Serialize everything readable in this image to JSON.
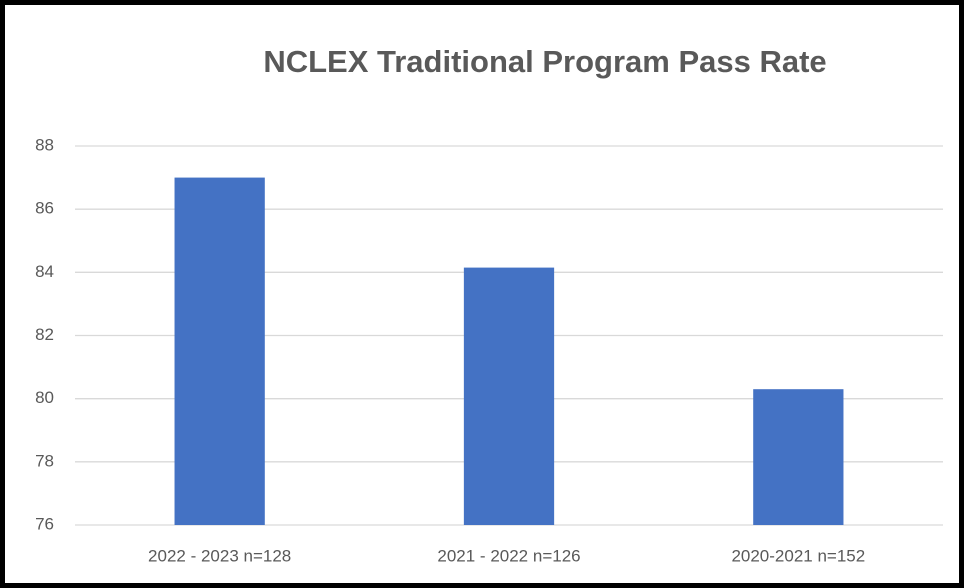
{
  "chart_data": {
    "type": "bar",
    "title": "NCLEX Traditional Program Pass Rate",
    "categories": [
      "2022 - 2023 n=128",
      "2021 - 2022 n=126",
      "2020-2021 n=152"
    ],
    "values": [
      87,
      84.15,
      80.3
    ],
    "color": "#4472c4",
    "ylim": [
      76,
      88
    ],
    "yticks": [
      76,
      78,
      80,
      82,
      84,
      86,
      88
    ],
    "grid": true
  }
}
